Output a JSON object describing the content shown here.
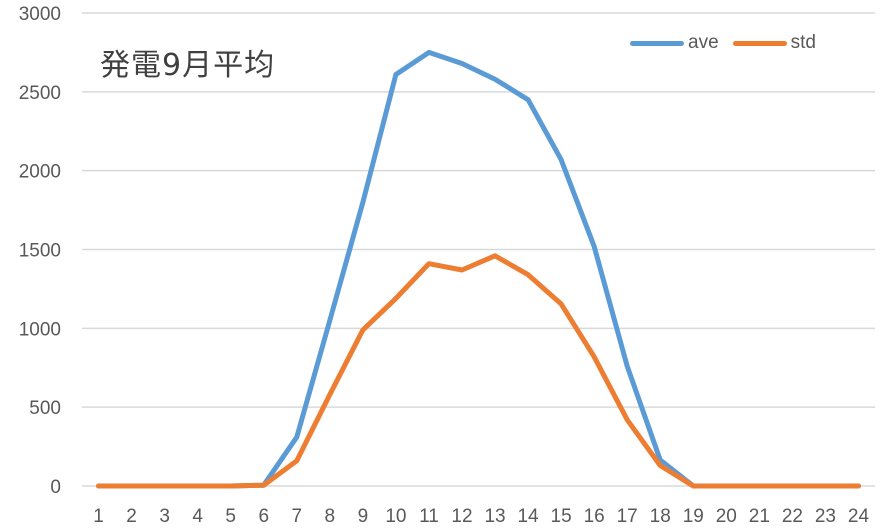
{
  "chart_data": {
    "type": "line",
    "title": "発電9月平均",
    "xlabel": "",
    "ylabel": "",
    "x": [
      1,
      2,
      3,
      4,
      5,
      6,
      7,
      8,
      9,
      10,
      11,
      12,
      13,
      14,
      15,
      16,
      17,
      18,
      19,
      20,
      21,
      22,
      23,
      24
    ],
    "categories": [
      "1",
      "2",
      "3",
      "4",
      "5",
      "6",
      "7",
      "8",
      "9",
      "10",
      "11",
      "12",
      "13",
      "14",
      "15",
      "16",
      "17",
      "18",
      "19",
      "20",
      "21",
      "22",
      "23",
      "24"
    ],
    "series": [
      {
        "name": "ave",
        "color": "#5B9BD5",
        "values": [
          0,
          0,
          0,
          0,
          0,
          5,
          310,
          1050,
          1800,
          2610,
          2750,
          2680,
          2580,
          2450,
          2070,
          1520,
          760,
          165,
          0,
          0,
          0,
          0,
          0,
          0
        ]
      },
      {
        "name": "std",
        "color": "#ED7D31",
        "values": [
          0,
          0,
          0,
          0,
          0,
          5,
          160,
          580,
          990,
          1190,
          1410,
          1370,
          1460,
          1340,
          1155,
          820,
          420,
          130,
          0,
          0,
          0,
          0,
          0,
          0
        ]
      }
    ],
    "ylim": [
      0,
      3000
    ],
    "yticks": [
      0,
      500,
      1000,
      1500,
      2000,
      2500,
      3000
    ],
    "grid": true,
    "legend_position": "top-right"
  },
  "title": "発電9月平均",
  "legend": [
    {
      "label": "ave",
      "color": "#5B9BD5"
    },
    {
      "label": "std",
      "color": "#ED7D31"
    }
  ]
}
